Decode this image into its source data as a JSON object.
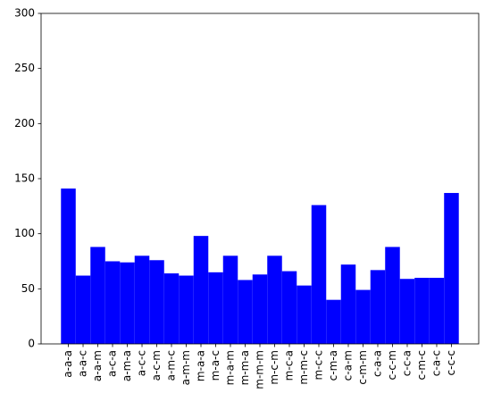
{
  "chart_data": {
    "type": "bar",
    "categories": [
      "a-a-a",
      "a-a-c",
      "a-a-m",
      "a-c-a",
      "a-m-a",
      "a-c-c",
      "a-c-m",
      "a-m-c",
      "a-m-m",
      "m-a-a",
      "m-a-c",
      "m-a-m",
      "m-m-a",
      "m-m-m",
      "m-c-m",
      "m-c-a",
      "m-m-c",
      "m-c-c",
      "c-m-a",
      "c-a-m",
      "c-m-m",
      "c-a-a",
      "c-c-m",
      "c-c-a",
      "c-m-c",
      "c-a-c",
      "c-c-c"
    ],
    "values": [
      141,
      62,
      88,
      75,
      74,
      80,
      76,
      64,
      62,
      98,
      65,
      80,
      58,
      63,
      80,
      66,
      53,
      126,
      40,
      72,
      49,
      67,
      88,
      59,
      60,
      60,
      137
    ],
    "color": "#0000ff",
    "ylim": [
      0,
      300
    ],
    "yticks": [
      0,
      50,
      100,
      150,
      200,
      250,
      300
    ],
    "grid": false
  }
}
